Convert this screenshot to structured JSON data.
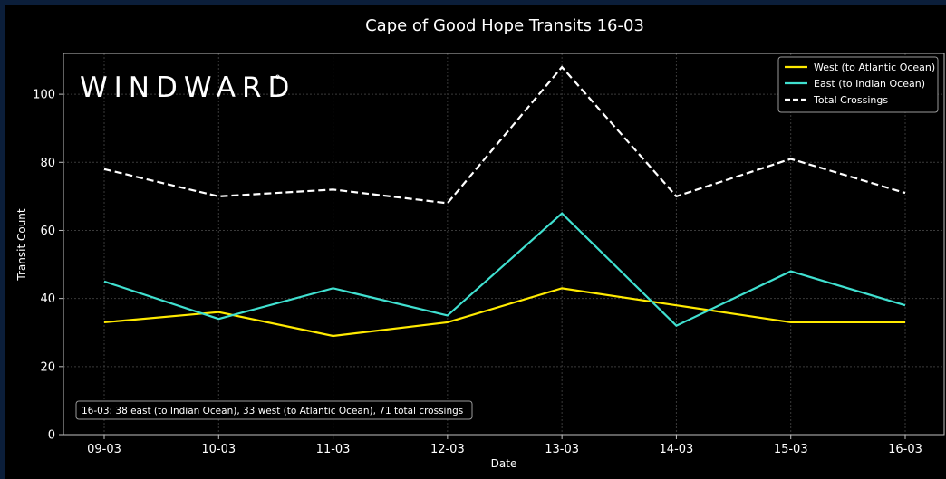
{
  "colors": {
    "page_border": "#0b1e3a",
    "background": "#000000",
    "axis": "#bfbfbf",
    "grid": "#3a3a3a",
    "text": "#ffffff"
  },
  "brand": {
    "text": "WINDWARD",
    "mark": "°"
  },
  "chart_data": {
    "type": "line",
    "title": "Cape of Good Hope Transits 16-03",
    "xlabel": "Date",
    "ylabel": "Transit Count",
    "categories": [
      "09-03",
      "10-03",
      "11-03",
      "12-03",
      "13-03",
      "14-03",
      "15-03",
      "16-03"
    ],
    "yticks": [
      0,
      20,
      40,
      60,
      80,
      100
    ],
    "ylim": [
      0,
      112
    ],
    "grid": true,
    "legend_position": "top-right",
    "series": [
      {
        "name": "West (to Atlantic Ocean)",
        "color": "#ffea00",
        "style": "solid",
        "values": [
          33,
          36,
          29,
          33,
          43,
          38,
          33,
          33
        ]
      },
      {
        "name": "East (to Indian Ocean)",
        "color": "#40e0d0",
        "style": "solid",
        "values": [
          45,
          34,
          43,
          35,
          65,
          32,
          48,
          38
        ]
      },
      {
        "name": "Total Crossings",
        "color": "#ffffff",
        "style": "dashed",
        "values": [
          78,
          70,
          72,
          68,
          108,
          70,
          81,
          71
        ]
      }
    ],
    "annotation": "16-03: 38 east (to Indian Ocean), 33 west (to Atlantic Ocean), 71 total crossings"
  }
}
